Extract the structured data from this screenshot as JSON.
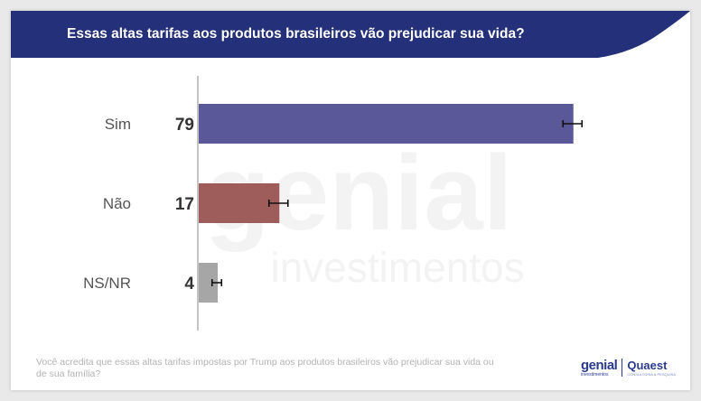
{
  "header": {
    "title": "Essas altas tarifas aos produtos brasileiros vão prejudicar sua vida?",
    "banner_color": "#25307a"
  },
  "chart_data": {
    "type": "bar",
    "orientation": "horizontal",
    "categories": [
      "Sim",
      "Não",
      "NS/NR"
    ],
    "values": [
      79,
      17,
      4
    ],
    "error_margin": [
      2,
      2,
      1
    ],
    "colors": [
      "#5b5899",
      "#9e5c5b",
      "#a6a6a6"
    ],
    "value_labels": [
      "79",
      "17",
      "4"
    ],
    "xlim": [
      0,
      100
    ],
    "title": "",
    "xlabel": "",
    "ylabel": ""
  },
  "watermark": {
    "line1": "genial",
    "line2": "investimentos"
  },
  "footnote": "Você acredita que essas altas tarifas impostas por Trump aos produtos brasileiros vão prejudicar sua vida ou de sua família?",
  "logos": {
    "genial": "genial",
    "genial_sub": "investimentos",
    "quaest": "Quaest",
    "quaest_sub": "CONSULTORIA & PESQUISA"
  }
}
